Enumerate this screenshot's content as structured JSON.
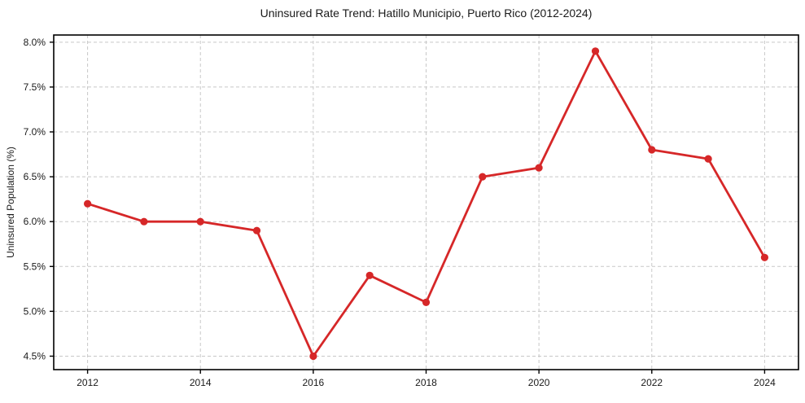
{
  "chart_data": {
    "type": "line",
    "title": "Uninsured Rate Trend: Hatillo Municipio, Puerto Rico (2012-2024)",
    "xlabel": "",
    "ylabel": "Uninsured Population (%)",
    "x": [
      2012,
      2013,
      2014,
      2015,
      2016,
      2017,
      2018,
      2019,
      2020,
      2021,
      2022,
      2023,
      2024
    ],
    "values": [
      6.2,
      6.0,
      6.0,
      5.9,
      4.5,
      5.4,
      5.1,
      6.5,
      6.6,
      7.9,
      6.8,
      6.7,
      5.6
    ],
    "xlim": [
      2011.4,
      2024.6
    ],
    "ylim": [
      4.35,
      8.08
    ],
    "xticks": {
      "positions": [
        2012,
        2014,
        2016,
        2018,
        2020,
        2022,
        2024
      ],
      "labels": [
        "2012",
        "2014",
        "2016",
        "2018",
        "2020",
        "2022",
        "2024"
      ]
    },
    "yticks": {
      "positions": [
        4.5,
        5.0,
        5.5,
        6.0,
        6.5,
        7.0,
        7.5,
        8.0
      ],
      "labels": [
        "4.5%",
        "5.0%",
        "5.5%",
        "6.0%",
        "6.5%",
        "7.0%",
        "7.5%",
        "8.0%"
      ]
    },
    "grid": true,
    "grid_style": "dashed",
    "legend": "none",
    "colors": {
      "line": "#d62728",
      "marker": "#d62728",
      "grid": "#c8c8c8",
      "axis": "#000000",
      "background": "#ffffff",
      "text": "#1a1a1a"
    }
  }
}
